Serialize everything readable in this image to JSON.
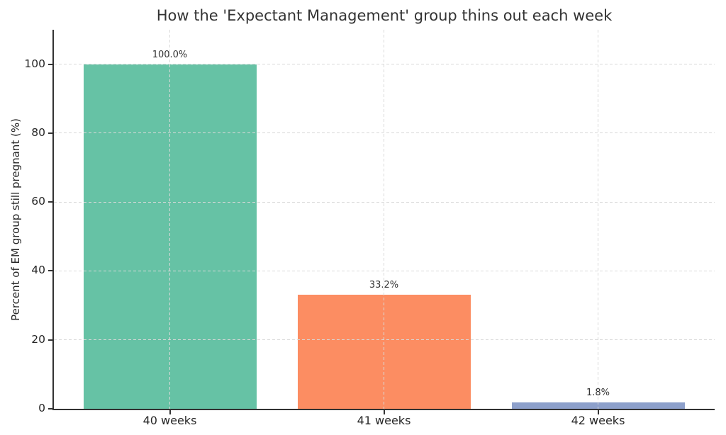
{
  "chart_data": {
    "type": "bar",
    "title": "How the 'Expectant Management' group thins out each week",
    "xlabel": "",
    "ylabel": "Percent of EM group still pregnant (%)",
    "categories": [
      "40 weeks",
      "41 weeks",
      "42 weeks"
    ],
    "values": [
      100.0,
      33.2,
      1.8
    ],
    "value_labels": [
      "100.0%",
      "33.2%",
      "1.8%"
    ],
    "bar_colors": [
      "#66c2a5",
      "#fc8d62",
      "#8da0cb"
    ],
    "ylim": [
      0,
      110
    ],
    "yticks": [
      0,
      20,
      40,
      60,
      80,
      100
    ],
    "grid": true,
    "grid_style": "dashed",
    "legend": "none",
    "spine_color": "#333333",
    "grid_color": "#d9d9d9",
    "text_color": "#262626",
    "title_color": "#333333"
  }
}
